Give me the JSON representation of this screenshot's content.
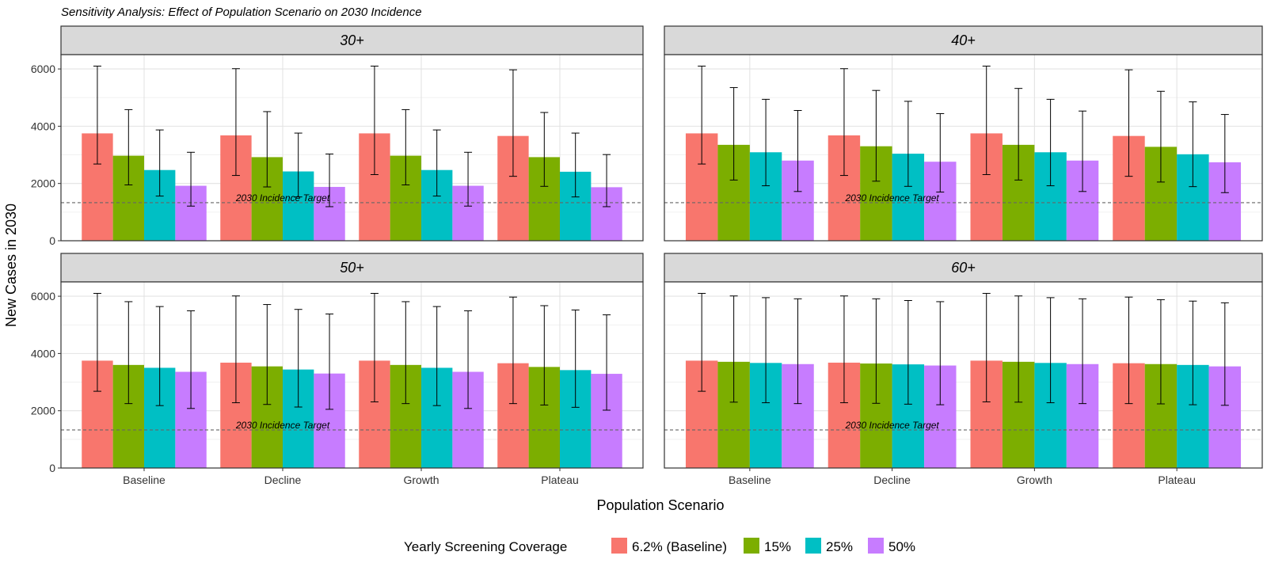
{
  "chart_data": {
    "type": "bar",
    "title": "Sensitivity Analysis: Effect of Population Scenario on 2030 Incidence",
    "xlabel": "Population Scenario",
    "ylabel": "New Cases in 2030",
    "ylim": [
      0,
      6500
    ],
    "yticks": [
      0,
      2000,
      4000,
      6000
    ],
    "grid": true,
    "legend_position": "bottom",
    "categories": [
      "Baseline",
      "Decline",
      "Growth",
      "Plateau"
    ],
    "reference_line": {
      "value": 1330,
      "label": "2030 Incidence Target"
    },
    "legend": {
      "title": "Yearly Screening Coverage",
      "items": [
        "6.2% (Baseline)",
        "15%",
        "25%",
        "50%"
      ],
      "colors": [
        "#F8766D",
        "#7CAE00",
        "#00BFC4",
        "#C77CFF"
      ]
    },
    "panels": [
      {
        "label": "30+",
        "series": [
          {
            "name": "6.2% (Baseline)",
            "values": [
              3750,
              3680,
              3750,
              3660
            ],
            "lower": [
              2680,
              2280,
              2310,
              2250
            ],
            "upper": [
              6100,
              6010,
              6100,
              5970
            ]
          },
          {
            "name": "15%",
            "values": [
              2970,
              2920,
              2970,
              2920
            ],
            "lower": [
              1950,
              1880,
              1950,
              1900
            ],
            "upper": [
              4580,
              4510,
              4580,
              4480
            ]
          },
          {
            "name": "25%",
            "values": [
              2470,
              2420,
              2470,
              2410
            ],
            "lower": [
              1560,
              1530,
              1560,
              1530
            ],
            "upper": [
              3870,
              3760,
              3870,
              3760
            ]
          },
          {
            "name": "50%",
            "values": [
              1920,
              1880,
              1920,
              1870
            ],
            "lower": [
              1210,
              1190,
              1210,
              1190
            ],
            "upper": [
              3090,
              3030,
              3090,
              3010
            ]
          }
        ]
      },
      {
        "label": "40+",
        "series": [
          {
            "name": "6.2% (Baseline)",
            "values": [
              3750,
              3680,
              3750,
              3660
            ],
            "lower": [
              2680,
              2280,
              2310,
              2250
            ],
            "upper": [
              6100,
              6010,
              6100,
              5970
            ]
          },
          {
            "name": "15%",
            "values": [
              3350,
              3300,
              3350,
              3280
            ],
            "lower": [
              2120,
              2080,
              2120,
              2050
            ],
            "upper": [
              5350,
              5250,
              5320,
              5220
            ]
          },
          {
            "name": "25%",
            "values": [
              3090,
              3040,
              3090,
              3020
            ],
            "lower": [
              1920,
              1900,
              1920,
              1890
            ],
            "upper": [
              4940,
              4870,
              4940,
              4850
            ]
          },
          {
            "name": "50%",
            "values": [
              2800,
              2760,
              2800,
              2740
            ],
            "lower": [
              1720,
              1700,
              1720,
              1680
            ],
            "upper": [
              4550,
              4440,
              4530,
              4410
            ]
          }
        ]
      },
      {
        "label": "50+",
        "series": [
          {
            "name": "6.2% (Baseline)",
            "values": [
              3750,
              3680,
              3750,
              3660
            ],
            "lower": [
              2680,
              2280,
              2310,
              2250
            ],
            "upper": [
              6100,
              6010,
              6100,
              5970
            ]
          },
          {
            "name": "15%",
            "values": [
              3600,
              3550,
              3600,
              3530
            ],
            "lower": [
              2250,
              2220,
              2250,
              2200
            ],
            "upper": [
              5810,
              5710,
              5810,
              5670
            ]
          },
          {
            "name": "25%",
            "values": [
              3500,
              3440,
              3500,
              3420
            ],
            "lower": [
              2180,
              2130,
              2180,
              2120
            ],
            "upper": [
              5640,
              5540,
              5640,
              5520
            ]
          },
          {
            "name": "50%",
            "values": [
              3360,
              3300,
              3360,
              3290
            ],
            "lower": [
              2080,
              2050,
              2080,
              2020
            ],
            "upper": [
              5490,
              5380,
              5490,
              5350
            ]
          }
        ]
      },
      {
        "label": "60+",
        "series": [
          {
            "name": "6.2% (Baseline)",
            "values": [
              3750,
              3680,
              3750,
              3660
            ],
            "lower": [
              2680,
              2280,
              2310,
              2250
            ],
            "upper": [
              6100,
              6010,
              6100,
              5970
            ]
          },
          {
            "name": "15%",
            "values": [
              3710,
              3650,
              3710,
              3630
            ],
            "lower": [
              2300,
              2260,
              2300,
              2240
            ],
            "upper": [
              6010,
              5910,
              6010,
              5880
            ]
          },
          {
            "name": "25%",
            "values": [
              3670,
              3620,
              3670,
              3600
            ],
            "lower": [
              2280,
              2230,
              2280,
              2210
            ],
            "upper": [
              5950,
              5850,
              5950,
              5830
            ]
          },
          {
            "name": "50%",
            "values": [
              3630,
              3580,
              3630,
              3550
            ],
            "lower": [
              2250,
              2210,
              2250,
              2190
            ],
            "upper": [
              5910,
              5810,
              5910,
              5770
            ]
          }
        ]
      }
    ]
  }
}
